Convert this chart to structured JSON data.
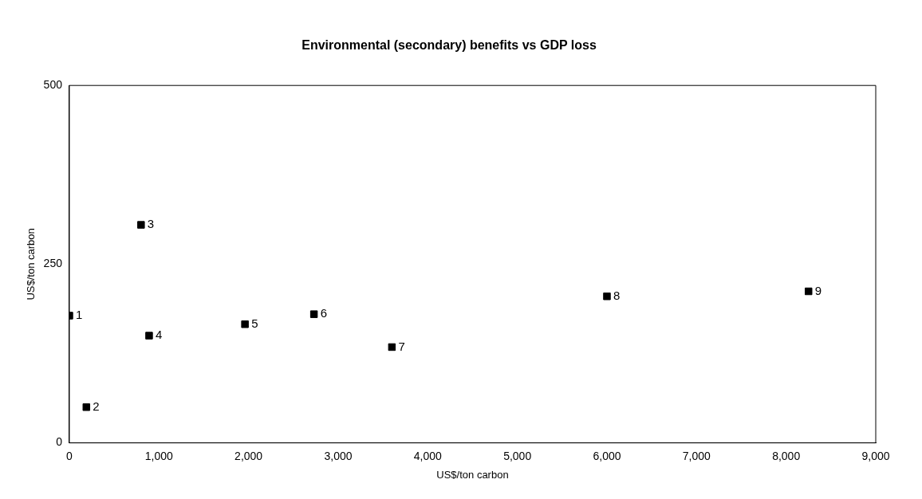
{
  "chart_data": {
    "type": "scatter",
    "title": "Environmental (secondary) benefits vs GDP loss",
    "xlabel": "US$/ton carbon",
    "ylabel": "US$/ton carbon",
    "x": [
      0,
      190,
      800,
      890,
      1960,
      2730,
      3600,
      6000,
      8250
    ],
    "series": [
      {
        "color": "#000000",
        "values": [
          178,
          50,
          305,
          150,
          166,
          180,
          134,
          205,
          212
        ]
      }
    ],
    "xlim": [
      0,
      9000
    ],
    "xticks": [
      {
        "value": 0,
        "label": "0"
      },
      {
        "value": 1000,
        "label": "1,000"
      },
      {
        "value": 2000,
        "label": "2,000"
      },
      {
        "value": 3000,
        "label": "3,000"
      },
      {
        "value": 4000,
        "label": "4,000"
      },
      {
        "value": 5000,
        "label": "5,000"
      },
      {
        "value": 6000,
        "label": "6,000"
      },
      {
        "value": 7000,
        "label": "7,000"
      },
      {
        "value": 8000,
        "label": "8,000"
      },
      {
        "value": 9000,
        "label": "9,000"
      }
    ],
    "ylim": [
      0,
      500
    ],
    "yticks": [
      0,
      250,
      500
    ],
    "grid": false,
    "legend": false,
    "marker": "square",
    "annotations": [
      {
        "text": "1",
        "x": 0,
        "y": 178
      },
      {
        "text": "2",
        "x": 190,
        "y": 50
      },
      {
        "text": "3",
        "x": 800,
        "y": 305
      },
      {
        "text": "4",
        "x": 890,
        "y": 150
      },
      {
        "text": "5",
        "x": 1960,
        "y": 166
      },
      {
        "text": "6",
        "x": 2730,
        "y": 180
      },
      {
        "text": "7",
        "x": 3600,
        "y": 134
      },
      {
        "text": "8",
        "x": 6000,
        "y": 205
      },
      {
        "text": "9",
        "x": 8250,
        "y": 212
      }
    ]
  }
}
